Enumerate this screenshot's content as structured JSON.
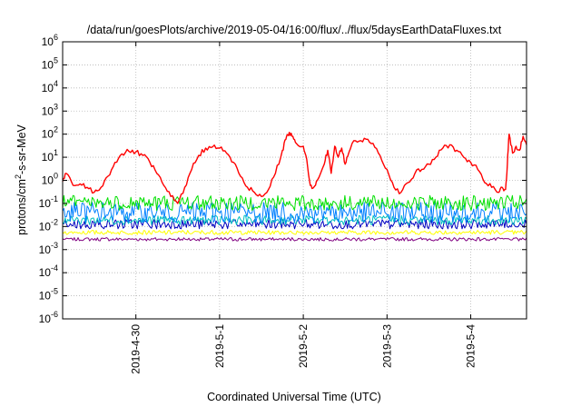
{
  "chart_data": {
    "type": "line",
    "title": "/data/run/goesPlots/archive/2019-05-04/16:00/flux/../flux/5daysEarthDataFluxes.txt",
    "xlabel": "Coordinated Universal Time (UTC)",
    "ylabel_parts": [
      "protons/cm",
      "2",
      "-s-sr-MeV"
    ],
    "y_scale": "log",
    "ylim": [
      1e-06,
      1000000.0
    ],
    "y_ticks": [
      {
        "base": "10",
        "exp": "-6",
        "value": 1e-06
      },
      {
        "base": "10",
        "exp": "-5",
        "value": 1e-05
      },
      {
        "base": "10",
        "exp": "-4",
        "value": 0.0001
      },
      {
        "base": "10",
        "exp": "-3",
        "value": 0.001
      },
      {
        "base": "10",
        "exp": "-2",
        "value": 0.01
      },
      {
        "base": "10",
        "exp": "-1",
        "value": 0.1
      },
      {
        "base": "10",
        "exp": "0",
        "value": 1
      },
      {
        "base": "10",
        "exp": "1",
        "value": 10
      },
      {
        "base": "10",
        "exp": "2",
        "value": 100
      },
      {
        "base": "10",
        "exp": "3",
        "value": 1000
      },
      {
        "base": "10",
        "exp": "4",
        "value": 10000
      },
      {
        "base": "10",
        "exp": "5",
        "value": 100000
      },
      {
        "base": "10",
        "exp": "6",
        "value": 1000000
      }
    ],
    "xlim": [
      "2019-04-29 03:00",
      "2019-05-04 16:00"
    ],
    "x_ticks": [
      {
        "label": "2019-4-30",
        "value": "2019-04-30 00:00"
      },
      {
        "label": "2019-5-1",
        "value": "2019-05-01 00:00"
      },
      {
        "label": "2019-5-2",
        "value": "2019-05-02 00:00"
      },
      {
        "label": "2019-5-3",
        "value": "2019-05-03 00:00"
      },
      {
        "label": "2019-5-4",
        "value": "2019-05-04 00:00"
      }
    ],
    "grid": true,
    "series": [
      {
        "color": "#ff0000",
        "x": [
          "2019-04-29 03:00",
          "2019-04-29 04:00",
          "2019-04-29 06:00",
          "2019-04-29 08:00",
          "2019-04-29 10:00",
          "2019-04-29 12:00",
          "2019-04-29 14:00",
          "2019-04-29 16:00",
          "2019-04-29 18:00",
          "2019-04-29 20:00",
          "2019-04-29 22:00",
          "2019-04-30 00:00",
          "2019-04-30 02:00",
          "2019-04-30 04:00",
          "2019-04-30 06:00",
          "2019-04-30 08:00",
          "2019-04-30 10:00",
          "2019-04-30 12:00",
          "2019-04-30 14:00",
          "2019-04-30 16:00",
          "2019-04-30 18:00",
          "2019-04-30 20:00",
          "2019-04-30 22:00",
          "2019-05-01 00:00",
          "2019-05-01 02:00",
          "2019-05-01 04:00",
          "2019-05-01 06:00",
          "2019-05-01 08:00",
          "2019-05-01 10:00",
          "2019-05-01 12:00",
          "2019-05-01 14:00",
          "2019-05-01 16:00",
          "2019-05-01 18:00",
          "2019-05-01 19:00",
          "2019-05-01 20:00",
          "2019-05-01 21:00",
          "2019-05-01 22:00",
          "2019-05-02 00:00",
          "2019-05-02 01:00",
          "2019-05-02 02:00",
          "2019-05-02 03:00",
          "2019-05-02 04:00",
          "2019-05-02 06:00",
          "2019-05-02 07:00",
          "2019-05-02 08:00",
          "2019-05-02 09:00",
          "2019-05-02 10:00",
          "2019-05-02 11:00",
          "2019-05-02 12:00",
          "2019-05-02 13:00",
          "2019-05-02 14:00",
          "2019-05-02 16:00",
          "2019-05-02 18:00",
          "2019-05-02 20:00",
          "2019-05-02 22:00",
          "2019-05-03 00:00",
          "2019-05-03 02:00",
          "2019-05-03 04:00",
          "2019-05-03 06:00",
          "2019-05-03 08:00",
          "2019-05-03 10:00",
          "2019-05-03 12:00",
          "2019-05-03 14:00",
          "2019-05-03 16:00",
          "2019-05-03 18:00",
          "2019-05-03 20:00",
          "2019-05-03 22:00",
          "2019-05-04 00:00",
          "2019-05-04 02:00",
          "2019-05-04 04:00",
          "2019-05-04 06:00",
          "2019-05-04 08:00",
          "2019-05-04 09:00",
          "2019-05-04 10:00",
          "2019-05-04 10:30",
          "2019-05-04 11:00",
          "2019-05-04 12:00",
          "2019-05-04 13:00",
          "2019-05-04 14:00",
          "2019-05-04 15:00",
          "2019-05-04 16:00"
        ],
        "y": [
          0.9,
          2.0,
          0.6,
          0.7,
          0.5,
          0.3,
          0.5,
          1.5,
          6,
          14,
          18,
          17,
          12,
          6,
          2,
          0.6,
          0.2,
          0.1,
          0.5,
          3,
          12,
          25,
          28,
          25,
          15,
          6,
          1.5,
          0.5,
          0.3,
          0.2,
          0.4,
          2,
          20,
          60,
          120,
          80,
          40,
          30,
          8,
          0.6,
          0.5,
          1,
          5,
          20,
          2,
          30,
          10,
          25,
          5,
          15,
          40,
          50,
          60,
          40,
          12,
          3,
          0.5,
          0.3,
          0.8,
          2,
          3,
          5,
          10,
          25,
          35,
          20,
          10,
          6,
          3,
          0.8,
          0.5,
          0.3,
          0.5,
          0.4,
          5,
          100,
          15,
          30,
          20,
          80,
          35
        ]
      },
      {
        "color": "#00e000",
        "x": [
          "2019-04-29 03:00",
          "2019-05-04 16:00"
        ],
        "y": [
          0.11,
          0.11
        ],
        "noise": [
          0.05,
          0.22
        ]
      },
      {
        "color": "#0080ff",
        "x": [
          "2019-04-29 03:00",
          "2019-05-04 16:00"
        ],
        "y": [
          0.045,
          0.045
        ],
        "noise": [
          0.015,
          0.11
        ]
      },
      {
        "color": "#00c0c0",
        "x": [
          "2019-04-29 03:00",
          "2019-05-04 16:00"
        ],
        "y": [
          0.019,
          0.019
        ],
        "noise": [
          0.012,
          0.03
        ]
      },
      {
        "color": "#0000c0",
        "x": [
          "2019-04-29 03:00",
          "2019-05-04 16:00"
        ],
        "y": [
          0.013,
          0.013
        ],
        "noise": [
          0.008,
          0.02
        ]
      },
      {
        "color": "#ffff00",
        "x": [
          "2019-04-29 03:00",
          "2019-05-04 16:00"
        ],
        "y": [
          0.0055,
          0.0055
        ],
        "noise": [
          0.0045,
          0.0068
        ]
      },
      {
        "color": "#800080",
        "x": [
          "2019-04-29 03:00",
          "2019-05-04 16:00"
        ],
        "y": [
          0.0028,
          0.0028
        ],
        "noise": [
          0.0024,
          0.0033
        ]
      }
    ]
  }
}
